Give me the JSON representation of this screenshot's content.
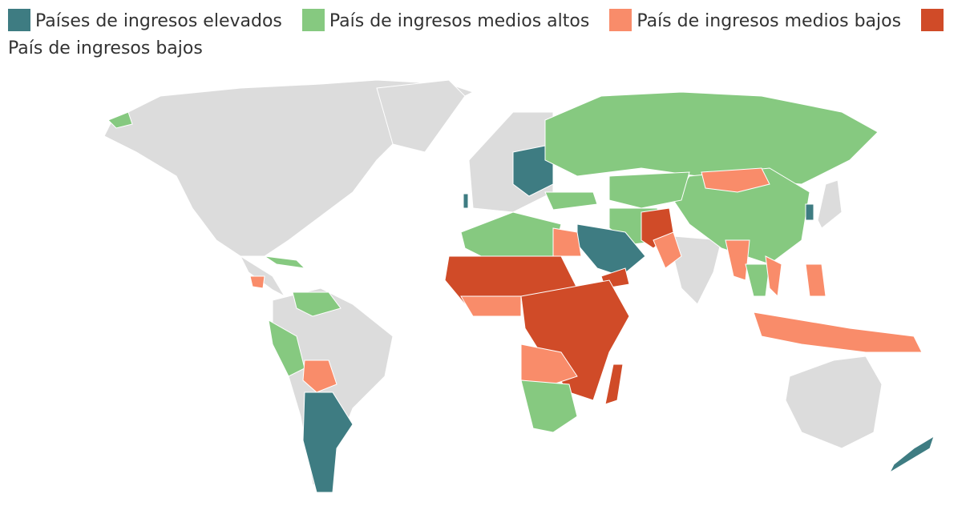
{
  "legend": [
    {
      "label": "Países de ingresos elevados",
      "color": "#3e7c82"
    },
    {
      "label": "País de ingresos medios altos",
      "color": "#86c980"
    },
    {
      "label": "País de ingresos medios bajos",
      "color": "#f98c6a"
    },
    {
      "label": "País de ingresos bajos",
      "color": "#d04b28"
    }
  ]
}
